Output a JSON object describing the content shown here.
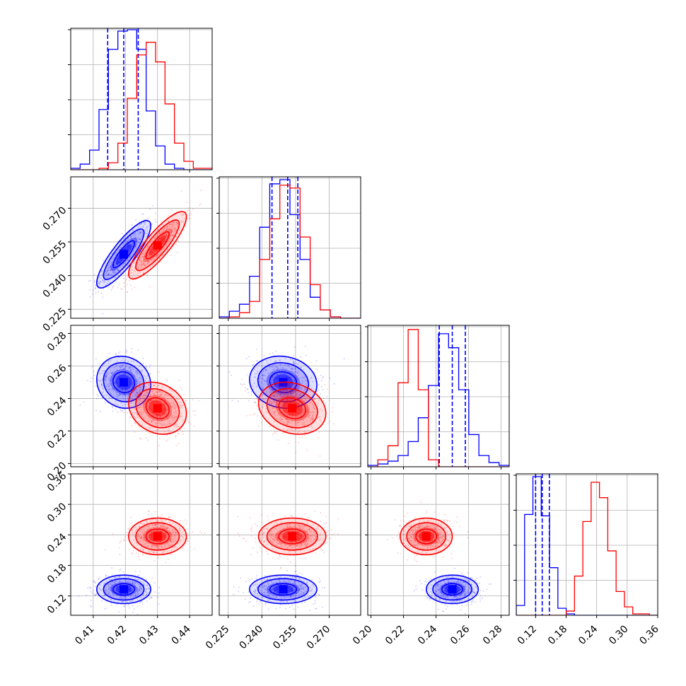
{
  "chart_data": {
    "type": "corner",
    "colors": {
      "sample_a": "#0000ff",
      "sample_b": "#ff0000"
    },
    "grid": true,
    "params": [
      {
        "range": [
          0.403,
          0.447
        ],
        "ticks": [
          0.41,
          0.42,
          0.43,
          0.44
        ],
        "labels": [
          "0.41",
          "0.42",
          "0.43",
          "0.44"
        ]
      },
      {
        "range": [
          0.221,
          0.284
        ],
        "ticks": [
          0.225,
          0.24,
          0.255,
          0.27
        ],
        "labels": [
          "0.225",
          "0.240",
          "0.255",
          "0.270"
        ]
      },
      {
        "range": [
          0.198,
          0.285
        ],
        "ticks": [
          0.2,
          0.22,
          0.24,
          0.26,
          0.28
        ],
        "labels": [
          "0.20",
          "0.22",
          "0.24",
          "0.26",
          "0.28"
        ]
      },
      {
        "range": [
          0.082,
          0.36
        ],
        "ticks": [
          0.12,
          0.18,
          0.24,
          0.3,
          0.36
        ],
        "labels": [
          "0.12",
          "0.18",
          "0.24",
          "0.30",
          "0.36"
        ]
      }
    ],
    "series": [
      {
        "color": "#0000ff",
        "mean": [
          0.4195,
          0.2495,
          0.25,
          0.133
        ],
        "std": [
          0.0042,
          0.0075,
          0.008,
          0.014
        ],
        "corr": {
          "0-1": 0.85,
          "0-2": -0.1,
          "0-3": 0.0,
          "1-2": -0.1,
          "1-3": 0.0,
          "2-3": 0.0
        },
        "quantiles": [
          [
            0.4145,
            0.4195,
            0.424
          ],
          [
            0.2445,
            0.2515,
            0.256
          ],
          [
            0.242,
            0.25,
            0.258
          ],
          [
            0.12,
            0.133,
            0.147
          ]
        ],
        "hist": [
          [
            0.01,
            0.04,
            0.14,
            0.43,
            0.86,
            0.99,
            1.0,
            0.86,
            0.42,
            0.17,
            0.04,
            0.01,
            0.0,
            0.0,
            0.0
          ],
          [
            0.01,
            0.05,
            0.1,
            0.3,
            0.65,
            0.96,
            0.99,
            0.74,
            0.42,
            0.15,
            0.06,
            0.01,
            0.0,
            0.0
          ],
          [
            0.01,
            0.02,
            0.04,
            0.08,
            0.18,
            0.35,
            0.58,
            0.95,
            0.85,
            0.55,
            0.23,
            0.08,
            0.03,
            0.01
          ],
          [
            0.07,
            0.72,
            0.99,
            0.71,
            0.34,
            0.05,
            0.01,
            0.0,
            0.0,
            0.0,
            0.0,
            0.0,
            0.0,
            0.0,
            0.0,
            0.0,
            0.0
          ]
        ]
      },
      {
        "color": "#ff0000",
        "mean": [
          0.43,
          0.2535,
          0.234,
          0.237
        ],
        "std": [
          0.0045,
          0.0075,
          0.008,
          0.018
        ],
        "corr": {
          "0-1": 0.85,
          "0-2": -0.2,
          "0-3": 0.0,
          "1-2": -0.2,
          "1-3": 0.0,
          "2-3": 0.0
        },
        "quantiles": [],
        "hist": [
          [
            0.0,
            0.0,
            0.0,
            0.01,
            0.05,
            0.19,
            0.51,
            0.82,
            0.91,
            0.77,
            0.47,
            0.19,
            0.06,
            0.01,
            0.01
          ],
          [
            0.0,
            0.01,
            0.04,
            0.12,
            0.42,
            0.71,
            0.95,
            0.93,
            0.58,
            0.24,
            0.06,
            0.01,
            0.0,
            0.0
          ],
          [
            0.0,
            0.05,
            0.15,
            0.6,
            0.98,
            0.55,
            0.05,
            0.0,
            0.0,
            0.0,
            0.0,
            0.0,
            0.0,
            0.0
          ],
          [
            0.0,
            0.0,
            0.0,
            0.0,
            0.0,
            0.0,
            0.03,
            0.28,
            0.67,
            0.95,
            0.84,
            0.46,
            0.17,
            0.06,
            0.01,
            0.01,
            0.0
          ]
        ]
      }
    ]
  }
}
